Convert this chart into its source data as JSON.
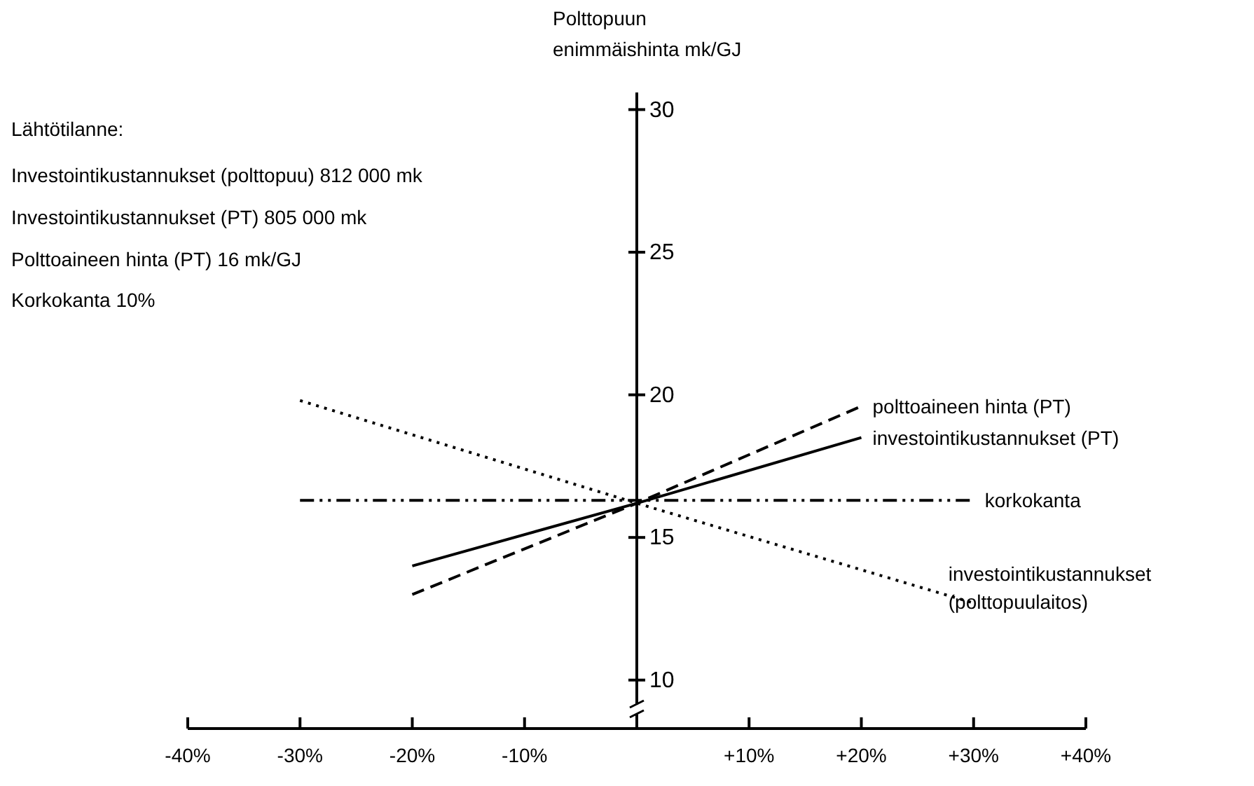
{
  "chart_data": {
    "type": "line",
    "ylabel": "Polttopuun enimmäishinta mk/GJ",
    "annotations": [
      "Lähtötilanne:",
      "Investointikustannukset (polttopuu) 812 000 mk",
      "Investointikustannukset (PT) 805 000 mk",
      "Polttoaineen hinta (PT) 16 mk/GJ",
      "Korkokanta 10%"
    ],
    "xlim": [
      -40,
      40
    ],
    "ylim": [
      8.3,
      30.6
    ],
    "xticks": [
      {
        "value": -40,
        "label": "-40%"
      },
      {
        "value": -30,
        "label": "-30%"
      },
      {
        "value": -20,
        "label": "-20%"
      },
      {
        "value": -10,
        "label": "-10%"
      },
      {
        "value": 10,
        "label": "+10%"
      },
      {
        "value": 20,
        "label": "+20%"
      },
      {
        "value": 30,
        "label": "+30%"
      },
      {
        "value": 40,
        "label": "+40%"
      }
    ],
    "yticks": [
      10,
      15,
      20,
      25,
      30
    ],
    "marker": "none",
    "series": [
      {
        "name": "polttoaineen hinta (PT)",
        "color": "#000000",
        "line_style": "dashed",
        "x": [
          -20,
          0,
          20
        ],
        "values": [
          13.0,
          16.2,
          19.6
        ]
      },
      {
        "name": "investointikustannukset (PT)",
        "color": "#000000",
        "line_style": "solid",
        "x": [
          -20,
          0,
          20
        ],
        "values": [
          14.0,
          16.2,
          18.5
        ]
      },
      {
        "name": "korkokanta",
        "color": "#000000",
        "line_style": "dashdot",
        "x": [
          -30,
          0,
          30
        ],
        "values": [
          16.3,
          16.3,
          16.3
        ]
      },
      {
        "name": "investointikustannukset (polttopuulaitos)",
        "color": "#000000",
        "line_style": "dotted",
        "x": [
          -30,
          0,
          30
        ],
        "values": [
          19.8,
          16.2,
          12.7
        ]
      }
    ]
  }
}
